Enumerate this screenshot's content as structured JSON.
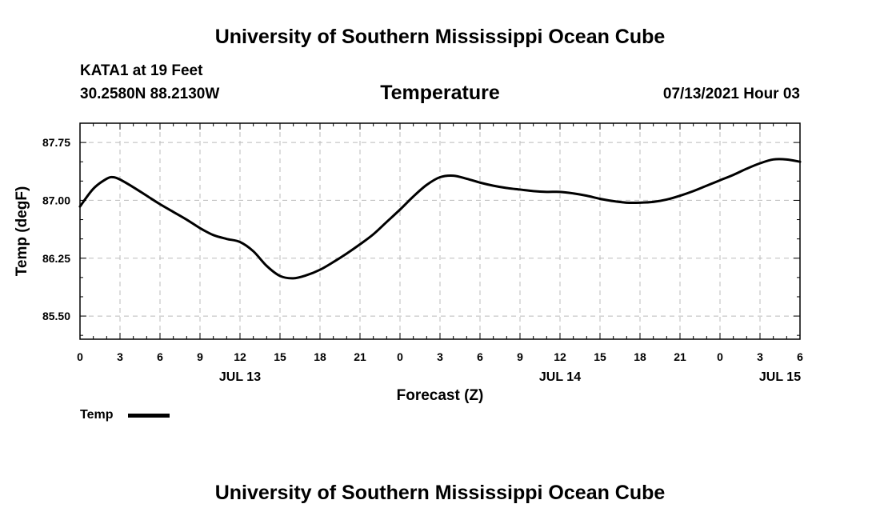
{
  "header": {
    "title_top": "University of Southern Mississippi Ocean Cube",
    "station": "KATA1 at 19 Feet",
    "coords": "30.2580N  88.2130W",
    "variable": "Temperature",
    "datetime": "07/13/2021 Hour 03"
  },
  "footer": {
    "title_bottom": "University of Southern Mississippi Ocean Cube"
  },
  "colors": {
    "line": "#000000",
    "grid": "#bbbbbb"
  },
  "chart_data": {
    "type": "line",
    "title": "Temperature",
    "xlabel": "Forecast (Z)",
    "ylabel": "Temp (degF)",
    "xlim": [
      0,
      54
    ],
    "ylim": [
      85.2,
      88.0
    ],
    "grid": true,
    "legend_position": "bottom-left",
    "x_ticks": [
      0,
      3,
      6,
      9,
      12,
      15,
      18,
      21,
      24,
      27,
      30,
      33,
      36,
      39,
      42,
      45,
      48,
      51,
      54
    ],
    "x_tick_labels": [
      "0",
      "3",
      "6",
      "9",
      "12",
      "15",
      "18",
      "21",
      "0",
      "3",
      "6",
      "9",
      "12",
      "15",
      "18",
      "21",
      "0",
      "3",
      "6"
    ],
    "date_labels": [
      {
        "x": 12,
        "label": "JUL 13"
      },
      {
        "x": 36,
        "label": "JUL 14"
      },
      {
        "x": 52.5,
        "label": "JUL 15"
      }
    ],
    "y_ticks": [
      85.5,
      86.25,
      87.0,
      87.75
    ],
    "y_tick_labels": [
      "85.50",
      "86.25",
      "87.00",
      "87.75"
    ],
    "series": [
      {
        "name": "Temp",
        "x": [
          0,
          1,
          2,
          2.5,
          3,
          4,
          5,
          6,
          7,
          8,
          9,
          10,
          11,
          12,
          13,
          14,
          15,
          16,
          17,
          18,
          19,
          20,
          21,
          22,
          23,
          24,
          25,
          26,
          27,
          28,
          29,
          30,
          31,
          32,
          33,
          34,
          35,
          36,
          37,
          38,
          39,
          40,
          41,
          42,
          43,
          44,
          45,
          46,
          47,
          48,
          49,
          50,
          51,
          52,
          53,
          54
        ],
        "values": [
          86.92,
          87.15,
          87.28,
          87.3,
          87.27,
          87.17,
          87.06,
          86.95,
          86.85,
          86.75,
          86.64,
          86.55,
          86.5,
          86.46,
          86.34,
          86.15,
          86.02,
          85.99,
          86.03,
          86.1,
          86.2,
          86.31,
          86.43,
          86.56,
          86.72,
          86.88,
          87.05,
          87.2,
          87.3,
          87.32,
          87.28,
          87.23,
          87.19,
          87.16,
          87.14,
          87.12,
          87.11,
          87.11,
          87.09,
          87.06,
          87.02,
          86.99,
          86.97,
          86.97,
          86.98,
          87.01,
          87.06,
          87.12,
          87.19,
          87.26,
          87.33,
          87.41,
          87.48,
          87.53,
          87.53,
          87.5
        ]
      }
    ]
  },
  "legend": {
    "label": "Temp"
  }
}
